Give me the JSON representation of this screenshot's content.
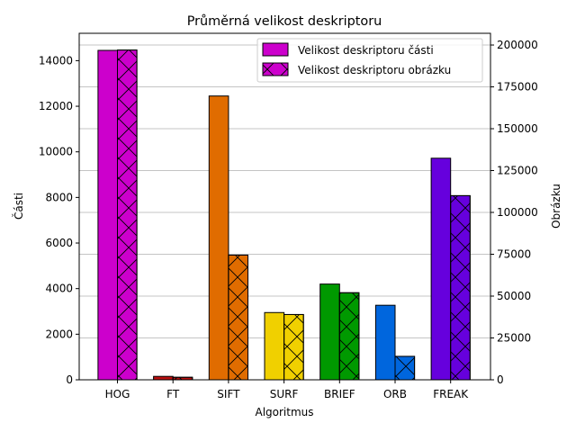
{
  "chart_data": {
    "type": "bar",
    "title": "Průměrná velikost deskriptoru",
    "xlabel": "Algoritmus",
    "ylabel_left": "Části",
    "ylabel_right": "Obrázku",
    "categories": [
      "HOG",
      "FT",
      "SIFT",
      "SURF",
      "BRIEF",
      "ORB",
      "FREAK"
    ],
    "colors": [
      "#cc00cc",
      "#bb1111",
      "#e06c00",
      "#f0d000",
      "#009900",
      "#0066dd",
      "#6600dd"
    ],
    "series": [
      {
        "name": "Velikost deskriptoru části",
        "axis": "left",
        "hatch": "none",
        "values": [
          14450,
          150,
          12450,
          2950,
          4200,
          3270,
          9720
        ]
      },
      {
        "name": "Velikost deskriptoru obrázku",
        "axis": "right",
        "hatch": "x",
        "values": [
          197000,
          1500,
          74500,
          39000,
          52000,
          14000,
          110000
        ]
      }
    ],
    "ylim_left": [
      0,
      15200
    ],
    "ylim_right": [
      0,
      207000
    ],
    "yticks_left": [
      "0",
      "2000",
      "4000",
      "6000",
      "8000",
      "10000",
      "12000",
      "14000"
    ],
    "yticks_left_values": [
      0,
      2000,
      4000,
      6000,
      8000,
      10000,
      12000,
      14000
    ],
    "yticks_right": [
      "0",
      "25000",
      "50000",
      "75000",
      "100000",
      "125000",
      "150000",
      "175000",
      "200000"
    ],
    "yticks_right_values": [
      0,
      25000,
      50000,
      75000,
      100000,
      125000,
      150000,
      175000,
      200000
    ],
    "grid": "horizontal (right axis)",
    "legend_placement": "top-right"
  }
}
